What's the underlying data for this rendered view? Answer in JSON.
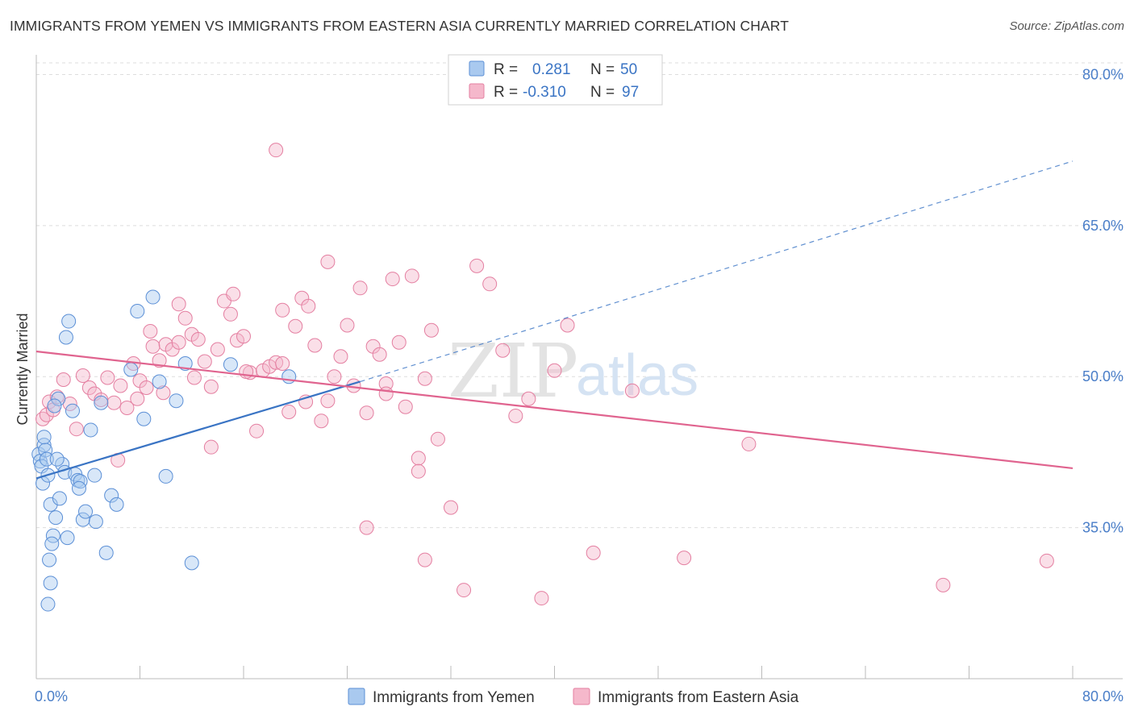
{
  "title": "IMMIGRANTS FROM YEMEN VS IMMIGRANTS FROM EASTERN ASIA CURRENTLY MARRIED CORRELATION CHART",
  "source": "Source: ZipAtlas.com",
  "watermark": {
    "zip": "ZIP",
    "atlas": "atlas"
  },
  "legend": {
    "r_label": "R =",
    "n_label": "N =",
    "rows": [
      {
        "r": "0.281",
        "n": "50"
      },
      {
        "r": "-0.310",
        "n": "97"
      }
    ]
  },
  "bottom_legend": [
    "Immigrants from Yemen",
    "Immigrants from Eastern Asia"
  ],
  "colors": {
    "yemen_fill": "#a9c9ef",
    "yemen_stroke": "#5b8fd6",
    "yemen_line": "#3a74c4",
    "asia_fill": "#f5b8cb",
    "asia_stroke": "#e47fa1",
    "asia_line": "#e0648f",
    "tick_color": "#4a7ec8",
    "grid": "#dddddd"
  },
  "chart_data": {
    "type": "scatter",
    "title": "IMMIGRANTS FROM YEMEN VS IMMIGRANTS FROM EASTERN ASIA CURRENTLY MARRIED CORRELATION CHART",
    "xlabel": "",
    "ylabel": "Currently Married",
    "xlim": [
      0,
      80
    ],
    "ylim": [
      20,
      83
    ],
    "x_tick_labels": [
      "0.0%",
      "80.0%"
    ],
    "y_ticks": [
      35,
      50,
      65,
      80
    ],
    "y_tick_labels": [
      "35.0%",
      "50.0%",
      "65.0%",
      "80.0%"
    ],
    "grid": true,
    "legend_position": "top-center",
    "series": [
      {
        "name": "Immigrants from Yemen",
        "r": 0.281,
        "n": 50,
        "trend": {
          "x": [
            0,
            25
          ],
          "y": [
            39.9,
            49.5
          ],
          "dashed_extension_to": [
            80,
            71.4
          ]
        },
        "points": [
          [
            0.2,
            42.3
          ],
          [
            0.3,
            41.6
          ],
          [
            0.4,
            41.1
          ],
          [
            0.5,
            39.4
          ],
          [
            0.6,
            43.2
          ],
          [
            0.7,
            42.7
          ],
          [
            0.8,
            41.8
          ],
          [
            0.9,
            40.2
          ],
          [
            1.1,
            37.3
          ],
          [
            1.3,
            34.2
          ],
          [
            1.5,
            36.0
          ],
          [
            1.8,
            37.9
          ],
          [
            2.0,
            41.3
          ],
          [
            2.2,
            40.5
          ],
          [
            2.4,
            34.0
          ],
          [
            2.8,
            46.6
          ],
          [
            3.0,
            40.3
          ],
          [
            3.2,
            39.7
          ],
          [
            3.4,
            39.6
          ],
          [
            3.6,
            35.8
          ],
          [
            3.8,
            36.6
          ],
          [
            4.2,
            44.7
          ],
          [
            4.6,
            35.6
          ],
          [
            5.0,
            47.4
          ],
          [
            5.4,
            32.5
          ],
          [
            5.8,
            38.2
          ],
          [
            6.2,
            37.3
          ],
          [
            1.0,
            31.8
          ],
          [
            1.1,
            29.5
          ],
          [
            0.9,
            27.4
          ],
          [
            1.2,
            33.4
          ],
          [
            1.6,
            41.8
          ],
          [
            2.5,
            55.5
          ],
          [
            2.3,
            53.9
          ],
          [
            1.7,
            47.8
          ],
          [
            1.4,
            47.1
          ],
          [
            7.8,
            56.5
          ],
          [
            9.0,
            57.9
          ],
          [
            8.3,
            45.8
          ],
          [
            10.0,
            40.1
          ],
          [
            12.0,
            31.5
          ],
          [
            9.5,
            49.5
          ],
          [
            10.8,
            47.6
          ],
          [
            11.5,
            51.3
          ],
          [
            7.3,
            50.7
          ],
          [
            15.0,
            51.2
          ],
          [
            19.5,
            50.0
          ],
          [
            3.3,
            38.9
          ],
          [
            0.6,
            44.0
          ],
          [
            4.5,
            40.2
          ]
        ]
      },
      {
        "name": "Immigrants from Eastern Asia",
        "r": -0.31,
        "n": 97,
        "trend": {
          "x": [
            0,
            80
          ],
          "y": [
            52.5,
            40.9
          ]
        },
        "points": [
          [
            0.5,
            45.8
          ],
          [
            0.8,
            46.2
          ],
          [
            1.0,
            47.5
          ],
          [
            1.3,
            46.7
          ],
          [
            1.6,
            48.0
          ],
          [
            2.1,
            49.7
          ],
          [
            2.6,
            47.3
          ],
          [
            3.1,
            44.8
          ],
          [
            3.6,
            50.1
          ],
          [
            4.1,
            48.9
          ],
          [
            4.5,
            48.3
          ],
          [
            5.0,
            47.7
          ],
          [
            5.5,
            49.9
          ],
          [
            6.0,
            47.4
          ],
          [
            6.5,
            49.1
          ],
          [
            7.0,
            46.9
          ],
          [
            7.5,
            51.3
          ],
          [
            8.0,
            49.6
          ],
          [
            8.5,
            48.9
          ],
          [
            9.0,
            53.0
          ],
          [
            9.5,
            51.6
          ],
          [
            10.0,
            53.2
          ],
          [
            10.5,
            52.7
          ],
          [
            11.0,
            53.4
          ],
          [
            11.5,
            55.8
          ],
          [
            12.0,
            54.2
          ],
          [
            12.5,
            53.7
          ],
          [
            13.0,
            51.5
          ],
          [
            13.5,
            49.0
          ],
          [
            14.0,
            52.7
          ],
          [
            14.5,
            57.5
          ],
          [
            15.0,
            56.2
          ],
          [
            15.5,
            53.6
          ],
          [
            16.0,
            54.0
          ],
          [
            16.5,
            50.4
          ],
          [
            17.0,
            44.6
          ],
          [
            17.5,
            50.6
          ],
          [
            18.0,
            51.0
          ],
          [
            18.5,
            51.4
          ],
          [
            19.0,
            51.3
          ],
          [
            19.5,
            46.5
          ],
          [
            20.0,
            55.0
          ],
          [
            20.5,
            57.8
          ],
          [
            21.0,
            57.0
          ],
          [
            21.5,
            53.1
          ],
          [
            22.0,
            45.6
          ],
          [
            22.5,
            47.6
          ],
          [
            23.0,
            50.0
          ],
          [
            23.5,
            52.0
          ],
          [
            24.0,
            55.1
          ],
          [
            24.5,
            49.1
          ],
          [
            25.0,
            58.8
          ],
          [
            25.5,
            46.4
          ],
          [
            26.0,
            53.0
          ],
          [
            26.5,
            52.2
          ],
          [
            27.0,
            49.3
          ],
          [
            27.5,
            59.7
          ],
          [
            28.0,
            53.4
          ],
          [
            28.5,
            47.0
          ],
          [
            29.0,
            60.0
          ],
          [
            29.5,
            41.9
          ],
          [
            30.0,
            49.8
          ],
          [
            30.5,
            54.6
          ],
          [
            31.0,
            43.8
          ],
          [
            32.0,
            37.0
          ],
          [
            33.0,
            28.8
          ],
          [
            34.0,
            61.0
          ],
          [
            35.0,
            59.2
          ],
          [
            36.0,
            52.6
          ],
          [
            37.0,
            46.1
          ],
          [
            38.0,
            47.8
          ],
          [
            39.0,
            28.0
          ],
          [
            40.0,
            50.6
          ],
          [
            41.0,
            55.1
          ],
          [
            43.0,
            32.5
          ],
          [
            46.0,
            48.6
          ],
          [
            50.0,
            32.0
          ],
          [
            55.0,
            43.3
          ],
          [
            70.0,
            29.3
          ],
          [
            78.0,
            31.7
          ],
          [
            18.5,
            72.5
          ],
          [
            22.5,
            61.4
          ],
          [
            25.5,
            35.0
          ],
          [
            30.0,
            31.8
          ],
          [
            13.5,
            43.0
          ],
          [
            8.8,
            54.5
          ],
          [
            6.3,
            41.7
          ],
          [
            11.0,
            57.2
          ],
          [
            15.2,
            58.2
          ],
          [
            19.0,
            56.6
          ],
          [
            20.8,
            47.5
          ],
          [
            27.0,
            48.3
          ],
          [
            9.8,
            48.4
          ],
          [
            12.2,
            49.9
          ],
          [
            16.2,
            50.5
          ],
          [
            7.8,
            47.8
          ],
          [
            29.5,
            40.6
          ]
        ]
      }
    ]
  }
}
